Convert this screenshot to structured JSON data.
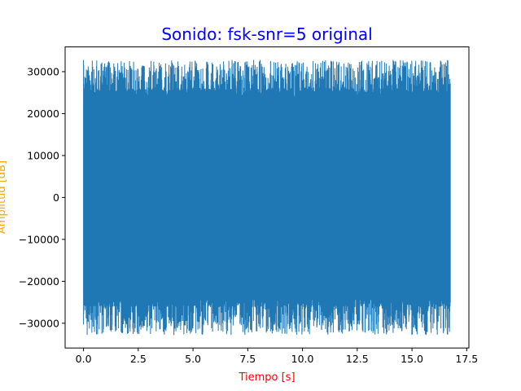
{
  "chart_data": {
    "type": "line",
    "title": "Sonido: fsk-snr=5 original",
    "xlabel": "Tiempo [s]",
    "ylabel": "Amplitud [dB]",
    "xlim": [
      -0.84,
      17.6
    ],
    "ylim": [
      -35900,
      35900
    ],
    "x_ticks": [
      0.0,
      2.5,
      5.0,
      7.5,
      10.0,
      12.5,
      15.0,
      17.5
    ],
    "x_tick_labels": [
      "0.0",
      "2.5",
      "5.0",
      "7.5",
      "10.0",
      "12.5",
      "15.0",
      "17.5"
    ],
    "y_ticks": [
      -30000,
      -20000,
      -10000,
      0,
      10000,
      20000,
      30000
    ],
    "y_tick_labels": [
      "−30000",
      "−20000",
      "−10000",
      "0",
      "10000",
      "20000",
      "30000"
    ],
    "grid": false,
    "series": [
      {
        "color": "#1f77b4",
        "signal": {
          "t_start": 0.0,
          "t_end": 16.75,
          "core_amplitude": 24000,
          "peak_max": 32800,
          "peak_min": -32800
        }
      }
    ],
    "colors": {
      "title": "#0000ff",
      "xlabel": "#ff0000",
      "ylabel": "#ffa500",
      "line": "#1f77b4"
    }
  }
}
